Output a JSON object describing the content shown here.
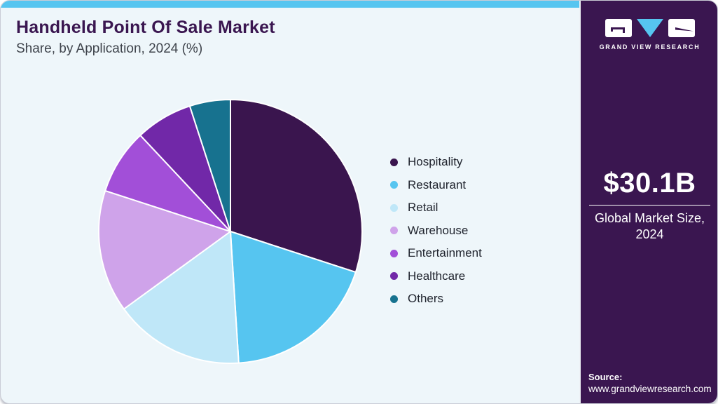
{
  "header": {
    "title": "Handheld Point Of Sale Market",
    "subtitle": "Share, by Application, 2024 (%)",
    "accent_bar_color": "#56c5f0",
    "title_color": "#3a1650"
  },
  "chart_data": {
    "type": "pie",
    "title": "Handheld Point Of Sale Market Share, by Application, 2024 (%)",
    "unit": "%",
    "legend_position": "right",
    "start_angle_deg": 0,
    "direction": "clockwise",
    "items": [
      {
        "label": "Hospitality",
        "value": 30,
        "color": "#3a154e"
      },
      {
        "label": "Restaurant",
        "value": 19,
        "color": "#56c5f0"
      },
      {
        "label": "Retail",
        "value": 16,
        "color": "#bfe7f8"
      },
      {
        "label": "Warehouse",
        "value": 15,
        "color": "#cfa3ea"
      },
      {
        "label": "Entertainment",
        "value": 8,
        "color": "#a24fd8"
      },
      {
        "label": "Healthcare",
        "value": 7,
        "color": "#7128a8"
      },
      {
        "label": "Others",
        "value": 5,
        "color": "#17728f"
      }
    ]
  },
  "sidebar": {
    "background": "#3a1650",
    "logo_wordmark": "GRAND VIEW RESEARCH",
    "market_size_value": "$30.1B",
    "market_size_label_line1": "Global Market Size,",
    "market_size_label_line2": "2024",
    "source_label": "Source:",
    "source_url": "www.grandviewresearch.com"
  }
}
